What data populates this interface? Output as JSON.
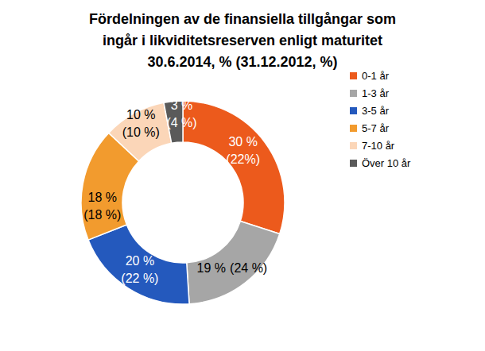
{
  "chart_data": {
    "type": "pie",
    "title": "Fördelningen av de finansiella tillgångar som\ningår i likviditetsreserven enligt maturitet\n30.6.2014, % (31.12.2012, %)",
    "categories": [
      "0-1 år",
      "1-3 år",
      "3-5 år",
      "5-7 år",
      "7-10 år",
      "Över 10 år"
    ],
    "series": [
      {
        "values": [
          30,
          19,
          20,
          18,
          10,
          3
        ],
        "value_labels": [
          "30 %",
          "19 %",
          "20 %",
          "18 %",
          "10 %",
          "3 %"
        ]
      },
      {
        "values": [
          22,
          24,
          22,
          18,
          10,
          4
        ],
        "value_labels": [
          "(22%)",
          "(24 %)",
          "(22 %)",
          "(18 %)",
          "(10 %)",
          "(4 %)"
        ]
      }
    ],
    "colors": [
      "#ec5a1c",
      "#a6a6a6",
      "#2459bd",
      "#f29b2e",
      "#fbd6b8",
      "#5a5a5a"
    ],
    "data_labels": true,
    "legend": "right"
  }
}
